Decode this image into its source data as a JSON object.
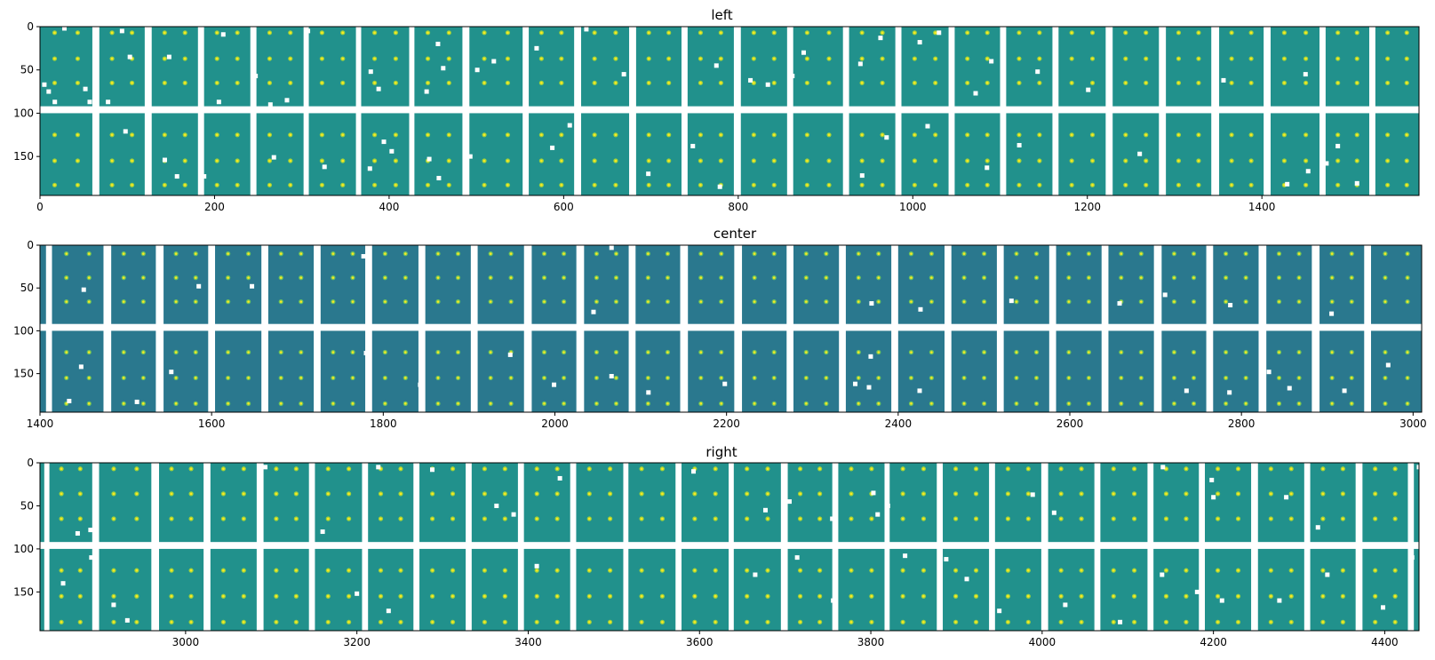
{
  "figure": {
    "panels": [
      {
        "title": "left"
      },
      {
        "title": "center"
      },
      {
        "title": "right"
      }
    ]
  },
  "chart_data": [
    {
      "type": "heatmap",
      "title": "left",
      "fill_color": "#21918c",
      "spot_color": "#b5de2b",
      "gap_color": "#ffffff",
      "xlim": [
        0,
        1580
      ],
      "ylim": [
        195,
        0
      ],
      "xticks": [
        0,
        200,
        400,
        600,
        800,
        1000,
        1200,
        1400
      ],
      "xtick_labels": [
        "0",
        "200",
        "400",
        "600",
        "800",
        "1000",
        "1200",
        "1400"
      ],
      "yticks": [
        0,
        50,
        100,
        150
      ],
      "ytick_labels": [
        "0",
        "50",
        "100",
        "150"
      ],
      "col_gaps": [
        [
          60,
          68
        ],
        [
          120,
          128
        ],
        [
          181,
          188
        ],
        [
          241,
          248
        ],
        [
          302,
          308
        ],
        [
          362,
          368
        ],
        [
          423,
          429
        ],
        [
          484,
          492
        ],
        [
          553,
          560
        ],
        [
          612,
          620
        ],
        [
          675,
          683
        ],
        [
          735,
          742
        ],
        [
          795,
          803
        ],
        [
          856,
          863
        ],
        [
          920,
          927
        ],
        [
          980,
          987
        ],
        [
          1041,
          1048
        ],
        [
          1100,
          1107
        ],
        [
          1160,
          1167
        ],
        [
          1221,
          1229
        ],
        [
          1282,
          1290
        ],
        [
          1342,
          1351
        ],
        [
          1402,
          1410
        ],
        [
          1466,
          1473
        ],
        [
          1523,
          1530
        ]
      ],
      "row_gap": [
        92,
        100
      ],
      "spot_rows": [
        7,
        37,
        65,
        125,
        155,
        183
      ],
      "spot_offsets": [
        0.28,
        0.72
      ],
      "specks": [
        [
          5,
          67
        ],
        [
          10,
          75
        ],
        [
          52,
          72
        ],
        [
          17,
          87
        ],
        [
          57,
          87
        ],
        [
          78,
          87
        ],
        [
          28,
          2
        ],
        [
          94,
          5
        ],
        [
          103,
          35
        ],
        [
          148,
          35
        ],
        [
          160,
          95
        ],
        [
          210,
          9
        ],
        [
          205,
          87
        ],
        [
          247,
          57
        ],
        [
          264,
          90
        ],
        [
          283,
          85
        ],
        [
          307,
          5
        ],
        [
          379,
          52
        ],
        [
          388,
          72
        ],
        [
          443,
          75
        ],
        [
          456,
          20
        ],
        [
          462,
          48
        ],
        [
          501,
          50
        ],
        [
          520,
          40
        ],
        [
          569,
          25
        ],
        [
          626,
          3
        ],
        [
          669,
          55
        ],
        [
          775,
          45
        ],
        [
          814,
          62
        ],
        [
          834,
          67
        ],
        [
          862,
          57
        ],
        [
          875,
          30
        ],
        [
          940,
          43
        ],
        [
          963,
          13
        ],
        [
          983,
          80
        ],
        [
          1008,
          18
        ],
        [
          1030,
          7
        ],
        [
          1072,
          77
        ],
        [
          1090,
          40
        ],
        [
          1143,
          52
        ],
        [
          1201,
          73
        ],
        [
          1356,
          62
        ],
        [
          1405,
          40
        ],
        [
          1450,
          55
        ],
        [
          98,
          121
        ],
        [
          157,
          173
        ],
        [
          143,
          154
        ],
        [
          188,
          173
        ],
        [
          268,
          151
        ],
        [
          326,
          162
        ],
        [
          378,
          164
        ],
        [
          394,
          133
        ],
        [
          403,
          144
        ],
        [
          446,
          153
        ],
        [
          457,
          175
        ],
        [
          493,
          150
        ],
        [
          587,
          140
        ],
        [
          607,
          114
        ],
        [
          697,
          170
        ],
        [
          748,
          138
        ],
        [
          779,
          185
        ],
        [
          860,
          132
        ],
        [
          942,
          172
        ],
        [
          970,
          128
        ],
        [
          1017,
          115
        ],
        [
          1044,
          108
        ],
        [
          1085,
          163
        ],
        [
          1122,
          137
        ],
        [
          1260,
          147
        ],
        [
          1429,
          182
        ],
        [
          1453,
          167
        ],
        [
          1474,
          158
        ],
        [
          1509,
          181
        ],
        [
          1487,
          138
        ]
      ]
    },
    {
      "type": "heatmap",
      "title": "center",
      "fill_color": "#2a788e",
      "spot_color": "#7ad151",
      "gap_color": "#ffffff",
      "xlim": [
        1400,
        3010
      ],
      "ylim": [
        195,
        0
      ],
      "xticks": [
        1400,
        1600,
        1800,
        2000,
        2200,
        2400,
        2600,
        2800,
        3000
      ],
      "xtick_labels": [
        "1400",
        "1600",
        "1800",
        "2000",
        "2200",
        "2400",
        "2600",
        "2800",
        "3000"
      ],
      "yticks": [
        0,
        50,
        100,
        150
      ],
      "ytick_labels": [
        "0",
        "50",
        "100",
        "150"
      ],
      "col_gaps": [
        [
          1407,
          1414
        ],
        [
          1474,
          1483
        ],
        [
          1535,
          1544
        ],
        [
          1596,
          1604
        ],
        [
          1658,
          1666
        ],
        [
          1719,
          1727
        ],
        [
          1779,
          1787
        ],
        [
          1841,
          1849
        ],
        [
          1902,
          1910
        ],
        [
          1964,
          1973
        ],
        [
          2025,
          2034
        ],
        [
          2086,
          2094
        ],
        [
          2146,
          2155
        ],
        [
          2209,
          2218
        ],
        [
          2270,
          2278
        ],
        [
          2331,
          2339
        ],
        [
          2392,
          2400
        ],
        [
          2454,
          2462
        ],
        [
          2515,
          2523
        ],
        [
          2576,
          2584
        ],
        [
          2637,
          2645
        ],
        [
          2698,
          2707
        ],
        [
          2759,
          2767
        ],
        [
          2820,
          2829
        ],
        [
          2882,
          2891
        ],
        [
          2943,
          2951
        ]
      ],
      "row_gap": [
        92,
        100
      ],
      "spot_rows": [
        10,
        38,
        66,
        125,
        155,
        185
      ],
      "spot_offsets": [
        0.28,
        0.72
      ],
      "specks": [
        [
          1451,
          52
        ],
        [
          1585,
          48
        ],
        [
          1647,
          48
        ],
        [
          1777,
          13
        ],
        [
          2045,
          78
        ],
        [
          2066,
          3
        ],
        [
          2369,
          68
        ],
        [
          2426,
          75
        ],
        [
          2532,
          65
        ],
        [
          2658,
          68
        ],
        [
          2711,
          58
        ],
        [
          2787,
          70
        ],
        [
          2886,
          84
        ],
        [
          2905,
          80
        ],
        [
          1448,
          142
        ],
        [
          1434,
          182
        ],
        [
          1513,
          183
        ],
        [
          1553,
          148
        ],
        [
          1780,
          126
        ],
        [
          1843,
          163
        ],
        [
          1948,
          128
        ],
        [
          1999,
          163
        ],
        [
          2066,
          153
        ],
        [
          2109,
          172
        ],
        [
          2198,
          162
        ],
        [
          2368,
          130
        ],
        [
          2350,
          162
        ],
        [
          2366,
          166
        ],
        [
          2425,
          170
        ],
        [
          2581,
          150
        ],
        [
          2642,
          172
        ],
        [
          2736,
          170
        ],
        [
          2786,
          172
        ],
        [
          2832,
          148
        ],
        [
          2856,
          167
        ],
        [
          2920,
          170
        ],
        [
          2971,
          140
        ]
      ]
    },
    {
      "type": "heatmap",
      "title": "right",
      "fill_color": "#21918c",
      "spot_color": "#b5de2b",
      "gap_color": "#ffffff",
      "xlim": [
        2830,
        4440
      ],
      "ylim": [
        195,
        0
      ],
      "xticks": [
        3000,
        3200,
        3400,
        3600,
        3800,
        4000,
        4200,
        4400
      ],
      "xtick_labels": [
        "3000",
        "3200",
        "3400",
        "3600",
        "3800",
        "4000",
        "4200",
        "4400"
      ],
      "yticks": [
        0,
        50,
        100,
        150
      ],
      "ytick_labels": [
        "0",
        "50",
        "100",
        "150"
      ],
      "col_gaps": [
        [
          2835,
          2841
        ],
        [
          2891,
          2899
        ],
        [
          2960,
          2969
        ],
        [
          3021,
          3029
        ],
        [
          3083,
          3091
        ],
        [
          3144,
          3151
        ],
        [
          3206,
          3213
        ],
        [
          3266,
          3273
        ],
        [
          3327,
          3334
        ],
        [
          3388,
          3395
        ],
        [
          3449,
          3456
        ],
        [
          3511,
          3517
        ],
        [
          3572,
          3579
        ],
        [
          3634,
          3640
        ],
        [
          3695,
          3703
        ],
        [
          3755,
          3762
        ],
        [
          3816,
          3822
        ],
        [
          3877,
          3884
        ],
        [
          3938,
          3945
        ],
        [
          3999,
          4007
        ],
        [
          4061,
          4068
        ],
        [
          4123,
          4130
        ],
        [
          4183,
          4190
        ],
        [
          4244,
          4252
        ],
        [
          4306,
          4313
        ],
        [
          4366,
          4374
        ],
        [
          4427,
          4434
        ]
      ],
      "row_gap": [
        92,
        100
      ],
      "spot_rows": [
        7,
        36,
        65,
        125,
        155,
        185
      ],
      "spot_offsets": [
        0.28,
        0.72
      ],
      "specks": [
        [
          2874,
          82
        ],
        [
          2889,
          78
        ],
        [
          3093,
          5
        ],
        [
          3160,
          80
        ],
        [
          3225,
          5
        ],
        [
          3288,
          8
        ],
        [
          3363,
          50
        ],
        [
          3383,
          60
        ],
        [
          3437,
          18
        ],
        [
          3593,
          10
        ],
        [
          3677,
          55
        ],
        [
          3705,
          45
        ],
        [
          3755,
          65
        ],
        [
          3803,
          35
        ],
        [
          3808,
          60
        ],
        [
          3820,
          50
        ],
        [
          3989,
          37
        ],
        [
          4014,
          58
        ],
        [
          4141,
          5
        ],
        [
          4198,
          20
        ],
        [
          4200,
          40
        ],
        [
          4285,
          40
        ],
        [
          4322,
          75
        ],
        [
          4440,
          5
        ],
        [
          2857,
          140
        ],
        [
          2890,
          110
        ],
        [
          2916,
          165
        ],
        [
          2932,
          183
        ],
        [
          3200,
          152
        ],
        [
          3210,
          140
        ],
        [
          3237,
          172
        ],
        [
          3269,
          152
        ],
        [
          3410,
          120
        ],
        [
          3665,
          130
        ],
        [
          3714,
          110
        ],
        [
          3756,
          160
        ],
        [
          3840,
          108
        ],
        [
          3888,
          112
        ],
        [
          3912,
          135
        ],
        [
          3950,
          172
        ],
        [
          4027,
          165
        ],
        [
          4091,
          185
        ],
        [
          4140,
          130
        ],
        [
          4181,
          150
        ],
        [
          4210,
          160
        ],
        [
          4277,
          160
        ],
        [
          4333,
          130
        ],
        [
          4398,
          168
        ],
        [
          4432,
          110
        ]
      ]
    }
  ]
}
